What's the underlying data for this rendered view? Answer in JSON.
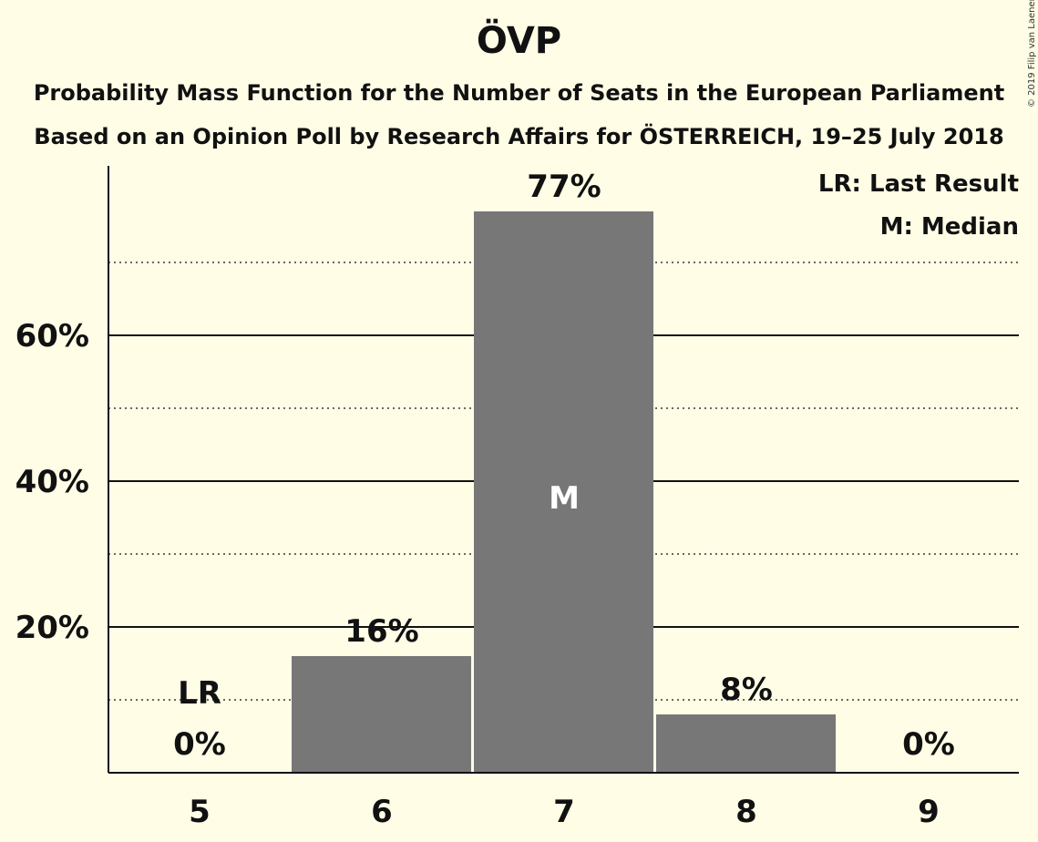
{
  "title": "ÖVP",
  "subtitle_line1": "Probability Mass Function for the Number of Seats in the European Parliament",
  "subtitle_line2": "Based on an Opinion Poll by Research Affairs for ÖSTERREICH, 19–25 July 2018",
  "copyright": "© 2019 Filip van Laenen",
  "legend": {
    "last_result": "LR: Last Result",
    "median": "M: Median"
  },
  "colors": {
    "background": "#fffde6",
    "bar": "#777777",
    "axis": "#111111"
  },
  "chart_data": {
    "type": "bar",
    "title": "ÖVP",
    "categories": [
      "5",
      "6",
      "7",
      "8",
      "9"
    ],
    "values": [
      0,
      16,
      77,
      8,
      0
    ],
    "value_labels": [
      "0%",
      "16%",
      "77%",
      "8%",
      "0%"
    ],
    "ylim": [
      0,
      80
    ],
    "y_major_ticks": [
      20,
      40,
      60
    ],
    "y_major_labels": [
      "20%",
      "40%",
      "60%"
    ],
    "y_minor_ticks": [
      10,
      30,
      50,
      70
    ],
    "last_result_category": "5",
    "last_result_label": "LR",
    "median_category": "7",
    "median_label": "M",
    "xlabel": "",
    "ylabel": ""
  }
}
